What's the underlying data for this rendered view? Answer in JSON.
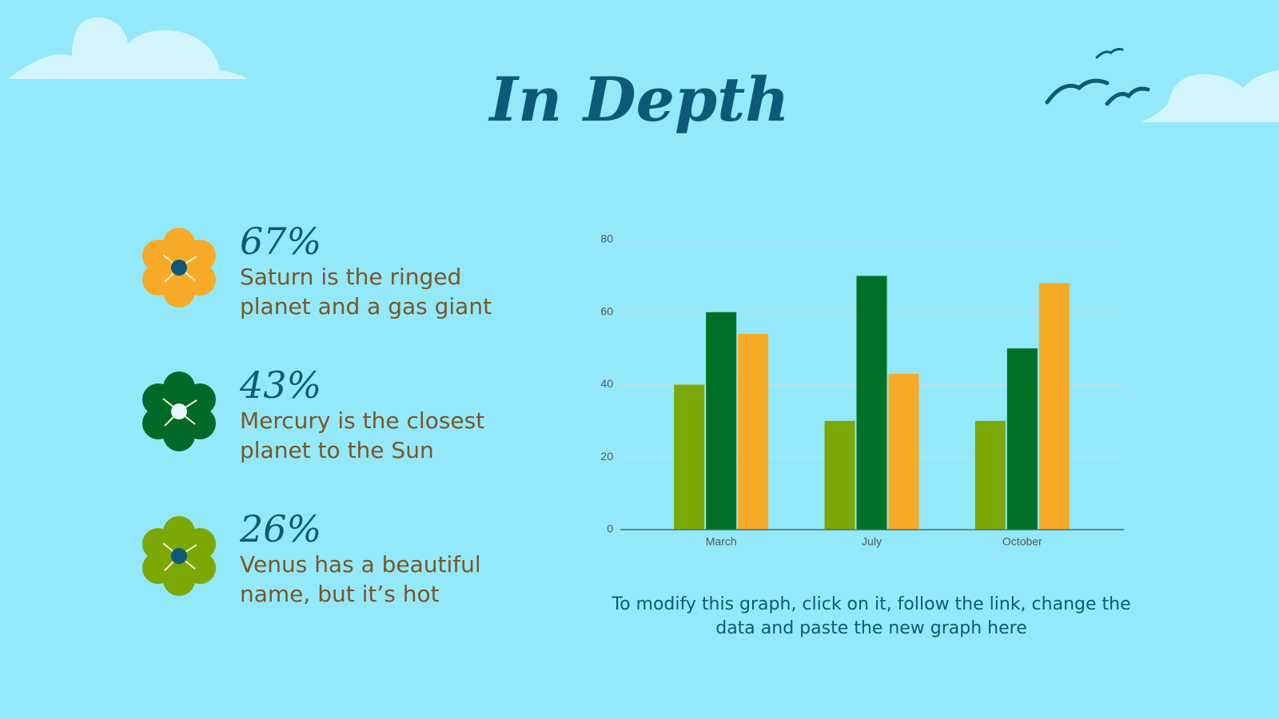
{
  "title": "In Depth",
  "stats": [
    {
      "value": "67%",
      "text": "Saturn is the ringed planet and a gas giant"
    },
    {
      "value": "43%",
      "text": "Mercury is the closest planet to the Sun"
    },
    {
      "value": "26%",
      "text": "Venus has a beautiful name, but it’s hot"
    }
  ],
  "note": "To modify this graph, click on it, follow the link, change the data and paste the new graph here",
  "chart_data": {
    "type": "bar",
    "categories": [
      "March",
      "July",
      "October"
    ],
    "series": [
      {
        "color": "#7ba805",
        "values": [
          40,
          30,
          30
        ]
      },
      {
        "color": "#007027",
        "values": [
          60,
          70,
          50
        ]
      },
      {
        "color": "#f7a928",
        "values": [
          54,
          43,
          68
        ]
      }
    ],
    "ylim": [
      0,
      80
    ],
    "yticks": [
      0,
      20,
      40,
      60,
      80
    ],
    "grid": true
  }
}
